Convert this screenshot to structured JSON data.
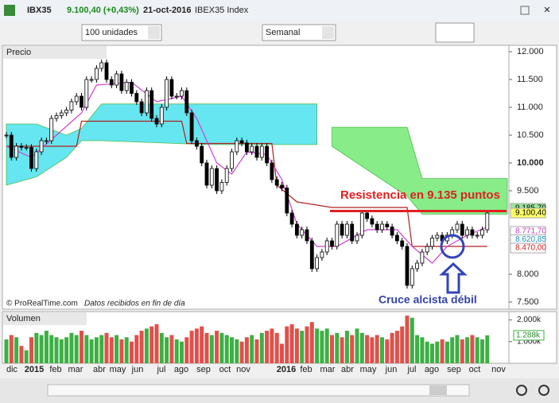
{
  "window": {
    "symbol": "IBX35",
    "price": "9.100,40 (+0,43%)",
    "date": "21-oct-2016",
    "name": "IBEX35 Index"
  },
  "toolbar": {
    "units": "100 unidades",
    "period": "Semanal"
  },
  "price_panel": {
    "label": "Precio",
    "ylim": [
      7400,
      12100
    ],
    "yticks": [
      {
        "value": 12000,
        "label": "12.000"
      },
      {
        "value": 11500,
        "label": "11.500"
      },
      {
        "value": 11000,
        "label": "11.000"
      },
      {
        "value": 10500,
        "label": "10.500"
      },
      {
        "value": 10000,
        "label": "10.000"
      },
      {
        "value": 9500,
        "label": "9.500"
      },
      {
        "value": 8000,
        "label": "8.000"
      },
      {
        "value": 7500,
        "label": "7.500"
      }
    ],
    "price_tags": [
      {
        "value": 9185.7,
        "label": "9.185,70",
        "color": "#9ae89a"
      },
      {
        "value": 9100.4,
        "label": "9.100,40",
        "color": "#ffff66"
      },
      {
        "value": 8771.7,
        "label": "8.771,70",
        "color": "#ffffff"
      },
      {
        "value": 8620.85,
        "label": "8.620,85",
        "color": "#ffffff"
      },
      {
        "value": 8470,
        "label": "8.470,00",
        "color": "#ffffff"
      }
    ],
    "closes": [
      10500,
      10100,
      10300,
      10280,
      10280,
      9900,
      10200,
      10400,
      10400,
      10800,
      10850,
      10900,
      10950,
      11100,
      11200,
      11000,
      11500,
      11500,
      11700,
      11800,
      11500,
      11400,
      11600,
      11300,
      11450,
      11250,
      11100,
      10900,
      11300,
      10800,
      10700,
      11000,
      11500,
      11200,
      11200,
      11300,
      10900,
      10400,
      10300,
      10000,
      9600,
      9900,
      9500,
      9650,
      9900,
      10200,
      10400,
      10360,
      10200,
      10300,
      10100,
      10300,
      10000,
      9700,
      9600,
      9550,
      9100,
      8900,
      8700,
      8800,
      8600,
      8100,
      8300,
      8400,
      8600,
      8500,
      8900,
      8700,
      8900,
      8600,
      8700,
      9100,
      9000,
      8900,
      8800,
      8900,
      8850,
      8700,
      8600,
      8500,
      7800,
      8100,
      8200,
      8400,
      8500,
      8650,
      8700,
      8600,
      8700,
      8800,
      8900,
      8700,
      8800,
      8700,
      8700,
      8800,
      9100.4
    ],
    "clouds": [
      {
        "color": "#66e6f0",
        "weeks": [
          0,
          6,
          12,
          15,
          19,
          40,
          62
        ],
        "upper": [
          10700,
          10700,
          10500,
          10620,
          11060,
          11060,
          11060
        ],
        "lower": [
          9600,
          9750,
          10100,
          10400,
          10400,
          10330,
          10330
        ]
      },
      {
        "color": "#88ec88",
        "weeks": [
          65,
          80,
          83,
          100
        ],
        "upper": [
          10640,
          10640,
          9720,
          9720
        ],
        "lower": [
          10300,
          9400,
          9080,
          9080
        ]
      }
    ],
    "tenkan": {
      "color": "#d040d0",
      "weeks": [
        0,
        5,
        10,
        15,
        18,
        25,
        30,
        35,
        38,
        42,
        45,
        48,
        52,
        55,
        58,
        62,
        66,
        72,
        78,
        81,
        85,
        88,
        92,
        96
      ],
      "values": [
        10300,
        10100,
        10500,
        10900,
        11400,
        11450,
        11100,
        11200,
        10800,
        10000,
        9800,
        10200,
        10150,
        9700,
        8900,
        8500,
        8500,
        8800,
        8800,
        8500,
        8200,
        8500,
        8700,
        8850
      ]
    },
    "kijun": {
      "color": "#b02020",
      "weeks": [
        0,
        14,
        15,
        35,
        36,
        53,
        54,
        58,
        65,
        80,
        81,
        96
      ],
      "values": [
        10300,
        10300,
        10750,
        10750,
        10350,
        10350,
        9600,
        9300,
        9200,
        9200,
        8500,
        8500
      ]
    },
    "resistance": 9135,
    "annotations": {
      "resistance": "Resistencia en 9.135 puntos",
      "cross": "Cruce alcista débil"
    },
    "footer": "© ProRealTime.com",
    "footer_note": "Datos recibidos en fin de día"
  },
  "volume_panel": {
    "label": "Volumen",
    "ylim": [
      0,
      2200
    ],
    "yticks": [
      {
        "value": 2000,
        "label": "2.000k"
      },
      {
        "value": 1000,
        "label": "1.000k"
      }
    ],
    "tag": {
      "value": 1288,
      "label": "1.288k"
    },
    "values": [
      1100,
      1300,
      1200,
      800,
      600,
      1200,
      1400,
      1300,
      1500,
      1300,
      1200,
      1100,
      1200,
      1400,
      1300,
      1500,
      1300,
      1100,
      1200,
      1300,
      1400,
      1200,
      1300,
      1100,
      1200,
      1000,
      1300,
      1500,
      1600,
      1700,
      1800,
      1400,
      1200,
      1300,
      1100,
      1000,
      1200,
      1500,
      1600,
      1700,
      1400,
      1300,
      1500,
      1400,
      1300,
      1200,
      1100,
      1000,
      1200,
      1300,
      1100,
      1400,
      1500,
      1600,
      1400,
      900,
      1700,
      1800,
      1600,
      1500,
      1700,
      1900,
      1600,
      1500,
      1600,
      1300,
      1400,
      1200,
      1500,
      1300,
      1600,
      1400,
      1300,
      1200,
      1300,
      1200,
      1100,
      1400,
      1500,
      1700,
      2200,
      2100,
      1300,
      1200,
      1000,
      900,
      1000,
      1100,
      1000,
      1200,
      1300,
      1100,
      1200,
      1300,
      1200,
      1100,
      1288
    ]
  },
  "x_labels": [
    "dic",
    "2015",
    "feb",
    "mar",
    "abr",
    "may",
    "jun",
    "jul",
    "ago",
    "sep",
    "oct",
    "nov",
    "2016",
    "feb",
    "mar",
    "abr",
    "may",
    "jun",
    "jul",
    "ago",
    "sep",
    "oct",
    "nov"
  ]
}
